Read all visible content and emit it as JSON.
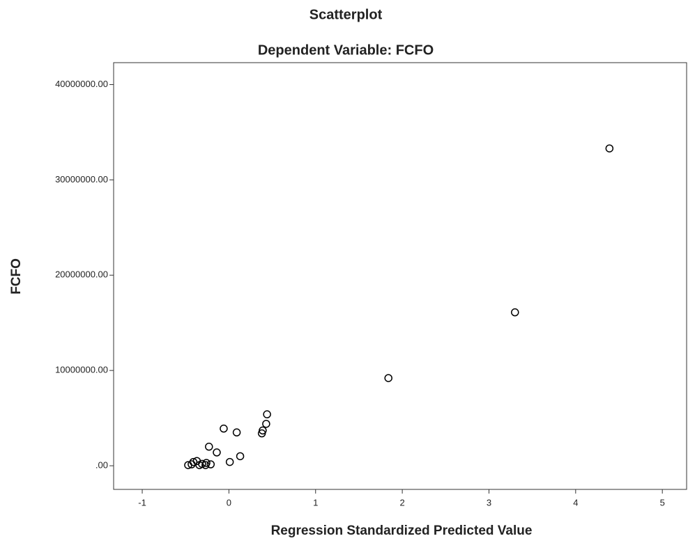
{
  "chart_data": {
    "type": "scatter",
    "title": "Scatterplot",
    "subtitle": "Dependent Variable: FCFO",
    "x_label": "Regression Standardized Predicted Value",
    "y_label": "FCFO",
    "x": [
      4.39,
      3.3,
      1.84,
      0.44,
      0.43,
      0.39,
      0.38,
      0.09,
      -0.06,
      0.13,
      0.01,
      -0.14,
      -0.23,
      -0.21,
      -0.26,
      -0.31,
      -0.37,
      -0.41,
      -0.43,
      -0.47,
      -0.34,
      -0.27
    ],
    "values": [
      33300000,
      16100000,
      9200000,
      5400000,
      4400000,
      3700000,
      3400000,
      3500000,
      3900000,
      1000000,
      400000,
      1400000,
      2000000,
      150000,
      300000,
      200000,
      500000,
      400000,
      150000,
      70000,
      70000,
      70000
    ],
    "color": "#000000",
    "xlim": [
      -1.33,
      5.28
    ],
    "xticks": [
      -1,
      0,
      1,
      2,
      3,
      4,
      5
    ],
    "ylim": [
      -2480000,
      42300000
    ],
    "yticks": [
      {
        "value": 0,
        "label": ".00"
      },
      {
        "value": 10000000,
        "label": "10000000.00"
      },
      {
        "value": 20000000,
        "label": "20000000.00"
      },
      {
        "value": 30000000,
        "label": "30000000.00"
      },
      {
        "value": 40000000,
        "label": "40000000.00"
      }
    ]
  }
}
